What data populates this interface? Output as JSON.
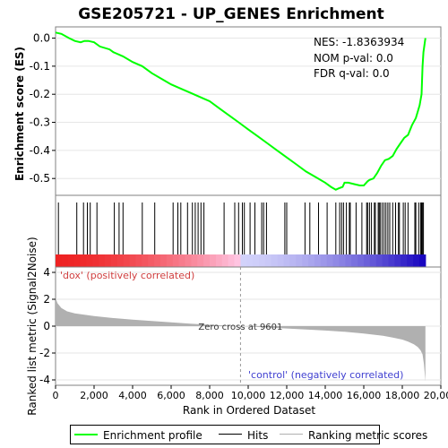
{
  "chart_data": {
    "type": "line",
    "title": "GSE205721 - UP_GENES Enrichment",
    "xlabel": "Rank in Ordered Dataset",
    "ylabel_top": "Enrichment score (ES)",
    "ylabel_bottom": "Ranked list metric (Signal2Noise)",
    "xlim": [
      0,
      20000
    ],
    "x_ticks": [
      0,
      2000,
      4000,
      6000,
      8000,
      10000,
      12000,
      14000,
      16000,
      18000,
      20000
    ],
    "x_tick_labels": [
      "0",
      "2,000",
      "4,000",
      "6,000",
      "8,000",
      "10,000",
      "12,000",
      "14,000",
      "16,000",
      "18,000",
      "20,000"
    ],
    "es_ylim": [
      -0.56,
      0.04
    ],
    "es_ticks": [
      0.0,
      -0.1,
      -0.2,
      -0.3,
      -0.4,
      -0.5
    ],
    "es_tick_labels": [
      "0.0",
      "-0.1",
      "-0.2",
      "-0.3",
      "-0.4",
      "-0.5"
    ],
    "metric_ylim": [
      -4.4,
      4.4
    ],
    "metric_ticks": [
      4,
      2,
      0,
      -2,
      -4
    ],
    "metric_tick_labels": [
      "4",
      "2",
      "0",
      "-2",
      "-4"
    ],
    "stats": {
      "nes": "NES: -1.8363934",
      "pval": "NOM p-val: 0.0",
      "fdr": "FDR q-val: 0.0"
    },
    "zero_cross_label": "Zero cross at 9601",
    "zero_cross_rank": 9601,
    "dataset_size": 19200,
    "pos_label": "'dox' (positively correlated)",
    "neg_label": "'control' (negatively correlated)",
    "series": [
      {
        "name": "Enrichment profile",
        "color": "#00ff00",
        "x": [
          0,
          300,
          700,
          1000,
          1300,
          1500,
          1700,
          2000,
          2300,
          2800,
          3000,
          3500,
          4000,
          4500,
          5000,
          5500,
          6000,
          6500,
          7000,
          7500,
          8000,
          8500,
          9000,
          9500,
          10000,
          10500,
          11000,
          11500,
          12000,
          12500,
          13000,
          13500,
          14000,
          14300,
          14550,
          14700,
          14900,
          15000,
          15200,
          15500,
          15800,
          16000,
          16200,
          16300,
          16500,
          16700,
          16900,
          17100,
          17300,
          17500,
          17700,
          17900,
          18100,
          18300,
          18500,
          18700,
          18900,
          19000,
          19050,
          19100,
          19200
        ],
        "values": [
          0.02,
          0.015,
          0.0,
          -0.01,
          -0.015,
          -0.01,
          -0.01,
          -0.015,
          -0.03,
          -0.04,
          -0.05,
          -0.065,
          -0.085,
          -0.1,
          -0.125,
          -0.145,
          -0.165,
          -0.18,
          -0.195,
          -0.21,
          -0.225,
          -0.25,
          -0.275,
          -0.3,
          -0.325,
          -0.35,
          -0.375,
          -0.4,
          -0.425,
          -0.45,
          -0.475,
          -0.495,
          -0.515,
          -0.53,
          -0.54,
          -0.535,
          -0.53,
          -0.515,
          -0.515,
          -0.52,
          -0.525,
          -0.525,
          -0.51,
          -0.505,
          -0.5,
          -0.48,
          -0.455,
          -0.435,
          -0.43,
          -0.42,
          -0.395,
          -0.375,
          -0.355,
          -0.345,
          -0.31,
          -0.285,
          -0.24,
          -0.2,
          -0.1,
          -0.05,
          0.0
        ]
      },
      {
        "name": "Ranking metric scores",
        "color": "#b0b0b0",
        "x": [
          0,
          100,
          300,
          600,
          1000,
          2000,
          3000,
          4000,
          5000,
          6000,
          7000,
          8000,
          9000,
          9601,
          10000,
          11000,
          12000,
          13000,
          14000,
          15000,
          16000,
          17000,
          17500,
          18000,
          18300,
          18600,
          18800,
          18950,
          19050,
          19120,
          19200
        ],
        "values": [
          2.1,
          1.7,
          1.35,
          1.1,
          0.95,
          0.75,
          0.6,
          0.48,
          0.38,
          0.28,
          0.18,
          0.1,
          0.04,
          0.0,
          -0.03,
          -0.1,
          -0.17,
          -0.25,
          -0.33,
          -0.42,
          -0.55,
          -0.72,
          -0.85,
          -1.0,
          -1.15,
          -1.35,
          -1.55,
          -1.8,
          -2.1,
          -2.8,
          -4.1
        ]
      }
    ],
    "hits": [
      150,
      1100,
      1450,
      1650,
      1800,
      2150,
      3050,
      3300,
      3500,
      4500,
      5150,
      6100,
      6350,
      6500,
      6850,
      7100,
      7250,
      7400,
      7550,
      7700,
      8750,
      9300,
      9500,
      9700,
      9800,
      10100,
      10350,
      10700,
      10800,
      10950,
      11900,
      12000,
      12950,
      13200,
      13650,
      14100,
      14550,
      14750,
      14850,
      14950,
      15100,
      15250,
      15300,
      15600,
      15900,
      16150,
      16200,
      16300,
      16400,
      16550,
      16600,
      16750,
      16800,
      16850,
      16950,
      17050,
      17150,
      17250,
      17350,
      17500,
      17650,
      17800,
      17850,
      18050,
      18150,
      18300,
      18650,
      18700,
      18850,
      18950,
      19000,
      19050,
      19100
    ]
  },
  "legend": {
    "enrichment_label": "Enrichment profile",
    "hits_label": "Hits",
    "metric_label": "Ranking metric scores"
  }
}
